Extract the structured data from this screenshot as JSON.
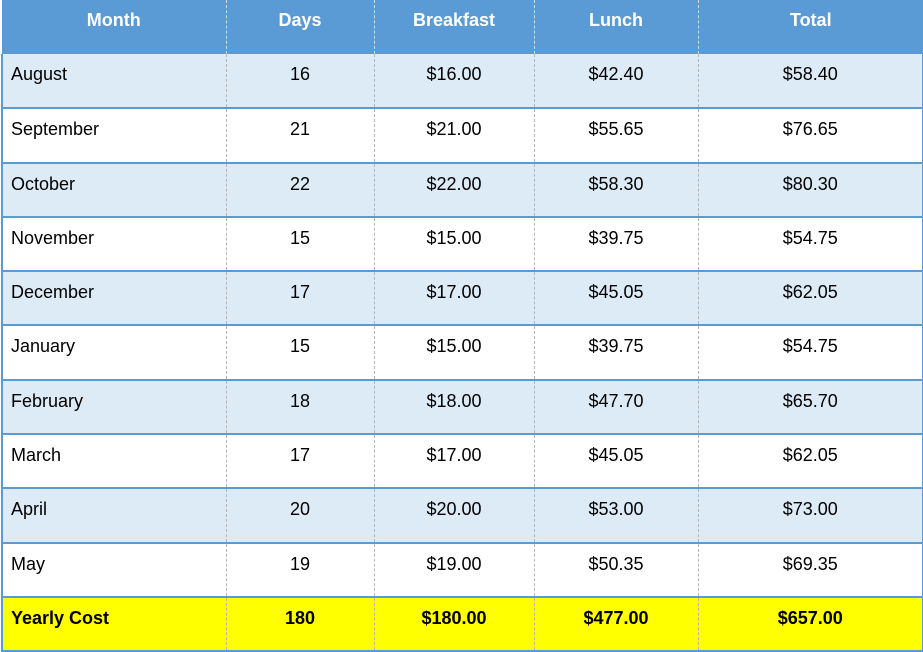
{
  "colors": {
    "header_bg": "#5b9bd5",
    "header_text": "#ffffff",
    "row_shade": "#ddebf7",
    "row_plain": "#ffffff",
    "total_bg": "#ffff00",
    "border": "#5b9bd5"
  },
  "table": {
    "columns": [
      "Month",
      "Days",
      "Breakfast",
      "Lunch",
      "Total"
    ],
    "rows": [
      [
        "August",
        "16",
        "$16.00",
        "$42.40",
        "$58.40"
      ],
      [
        "September",
        "21",
        "$21.00",
        "$55.65",
        "$76.65"
      ],
      [
        "October",
        "22",
        "$22.00",
        "$58.30",
        "$80.30"
      ],
      [
        "November",
        "15",
        "$15.00",
        "$39.75",
        "$54.75"
      ],
      [
        "December",
        "17",
        "$17.00",
        "$45.05",
        "$62.05"
      ],
      [
        "January",
        "15",
        "$15.00",
        "$39.75",
        "$54.75"
      ],
      [
        "February",
        "18",
        "$18.00",
        "$47.70",
        "$65.70"
      ],
      [
        "March",
        "17",
        "$17.00",
        "$45.05",
        "$62.05"
      ],
      [
        "April",
        "20",
        "$20.00",
        "$53.00",
        "$73.00"
      ],
      [
        "May",
        "19",
        "$19.00",
        "$50.35",
        "$69.35"
      ]
    ],
    "total_row": [
      "Yearly Cost",
      "180",
      "$180.00",
      "$477.00",
      "$657.00"
    ]
  }
}
